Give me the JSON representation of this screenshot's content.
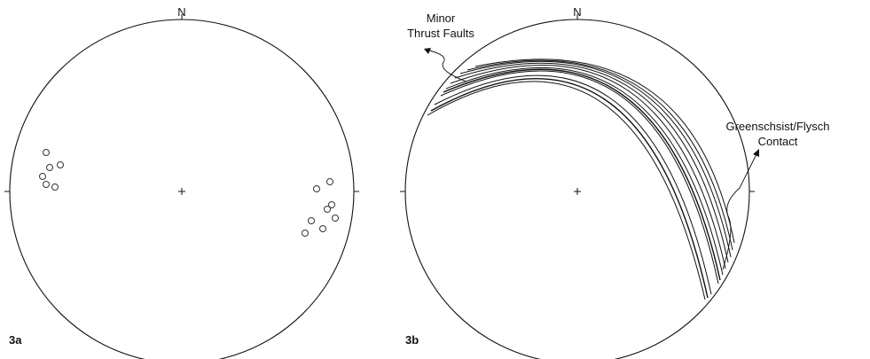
{
  "panels": [
    {
      "id": "3a",
      "north_label": "N",
      "pole_count": 14
    },
    {
      "id": "3b",
      "north_label": "N",
      "great_circle_count": 11,
      "annotations": [
        {
          "lines": [
            "Minor",
            "Thrust Faults"
          ]
        },
        {
          "lines": [
            "Greenschsist/Flysch",
            "Contact"
          ]
        }
      ]
    }
  ],
  "colors": {
    "ink": "#111111",
    "background": "#ffffff"
  }
}
